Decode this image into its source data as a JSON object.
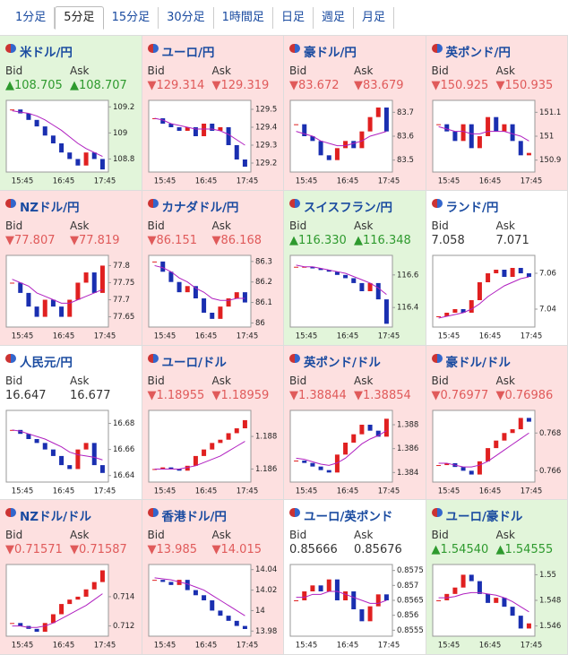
{
  "tabs": [
    {
      "label": "1分足",
      "active": false
    },
    {
      "label": "5分足",
      "active": true
    },
    {
      "label": "15分足",
      "active": false
    },
    {
      "label": "30分足",
      "active": false
    },
    {
      "label": "1時間足",
      "active": false
    },
    {
      "label": "日足",
      "active": false
    },
    {
      "label": "週足",
      "active": false
    },
    {
      "label": "月足",
      "active": false
    }
  ],
  "labels": {
    "bid": "Bid",
    "ask": "Ask"
  },
  "xticks": [
    "15:45",
    "16:45",
    "17:45"
  ],
  "colors": {
    "up": "#2e9a2e",
    "down": "#e05a5a",
    "none": "#333",
    "cell_up": "#e2f5da",
    "cell_down": "#fde0e0",
    "cell_none": "#ffffff",
    "candle_up": "#e02020",
    "candle_down": "#1a2fb0",
    "ma": "#b020c0"
  },
  "pairs": [
    {
      "name": "米ドル/円",
      "trend": "up",
      "bid": "▲108.705",
      "ask": "▲108.707",
      "chart": {
        "type": "candlestick",
        "yticks": [
          108.8,
          109,
          109.2
        ],
        "ylim": [
          108.7,
          109.25
        ],
        "close": [
          109.18,
          109.15,
          109.1,
          109.05,
          108.98,
          108.92,
          108.85,
          108.8,
          108.75,
          108.85,
          108.8,
          108.72
        ],
        "ma": [
          109.17,
          109.16,
          109.15,
          109.13,
          109.1,
          109.06,
          109.02,
          108.97,
          108.92,
          108.88,
          108.85,
          108.82
        ]
      }
    },
    {
      "name": "ユーロ/円",
      "trend": "down",
      "bid": "▼129.314",
      "ask": "▼129.319",
      "chart": {
        "type": "candlestick",
        "yticks": [
          129.2,
          129.3,
          129.4,
          129.5
        ],
        "ylim": [
          129.15,
          129.55
        ],
        "close": [
          129.45,
          129.42,
          129.4,
          129.38,
          129.4,
          129.35,
          129.42,
          129.38,
          129.4,
          129.3,
          129.22,
          129.18
        ],
        "ma": [
          129.45,
          129.44,
          129.42,
          129.41,
          129.4,
          129.39,
          129.39,
          129.39,
          129.38,
          129.36,
          129.33,
          129.3
        ]
      }
    },
    {
      "name": "豪ドル/円",
      "trend": "down",
      "bid": "▼83.672",
      "ask": "▼83.679",
      "chart": {
        "type": "candlestick",
        "yticks": [
          83.5,
          83.6,
          83.7
        ],
        "ylim": [
          83.45,
          83.75
        ],
        "close": [
          83.65,
          83.6,
          83.58,
          83.52,
          83.5,
          83.55,
          83.58,
          83.55,
          83.62,
          83.68,
          83.72,
          83.62
        ],
        "ma": [
          83.62,
          83.61,
          83.6,
          83.58,
          83.57,
          83.56,
          83.56,
          83.57,
          83.58,
          83.6,
          83.61,
          83.62
        ]
      }
    },
    {
      "name": "英ポンド/円",
      "trend": "down",
      "bid": "▼150.925",
      "ask": "▼150.935",
      "chart": {
        "type": "candlestick",
        "yticks": [
          150.9,
          151,
          151.1
        ],
        "ylim": [
          150.85,
          151.15
        ],
        "close": [
          151.05,
          151.02,
          150.98,
          151.05,
          150.95,
          151.0,
          151.08,
          151.02,
          151.05,
          150.98,
          150.92,
          150.93
        ],
        "ma": [
          151.04,
          151.03,
          151.02,
          151.02,
          151.01,
          151.01,
          151.02,
          151.02,
          151.02,
          151.01,
          151.0,
          150.98
        ]
      }
    },
    {
      "name": "NZドル/円",
      "trend": "down",
      "bid": "▼77.807",
      "ask": "▼77.819",
      "chart": {
        "type": "candlestick",
        "yticks": [
          77.65,
          77.7,
          77.75,
          77.8
        ],
        "ylim": [
          77.62,
          77.83
        ],
        "close": [
          77.75,
          77.72,
          77.68,
          77.65,
          77.7,
          77.68,
          77.65,
          77.7,
          77.75,
          77.78,
          77.72,
          77.8
        ],
        "ma": [
          77.76,
          77.75,
          77.74,
          77.72,
          77.71,
          77.7,
          77.69,
          77.69,
          77.7,
          77.71,
          77.72,
          77.73
        ]
      }
    },
    {
      "name": "カナダドル/円",
      "trend": "down",
      "bid": "▼86.151",
      "ask": "▼86.168",
      "chart": {
        "type": "candlestick",
        "yticks": [
          86,
          86.1,
          86.2,
          86.3
        ],
        "ylim": [
          85.98,
          86.33
        ],
        "close": [
          86.3,
          86.25,
          86.2,
          86.15,
          86.18,
          86.12,
          86.05,
          86.02,
          86.08,
          86.12,
          86.15,
          86.1
        ],
        "ma": [
          86.28,
          86.27,
          86.25,
          86.22,
          86.2,
          86.17,
          86.15,
          86.12,
          86.11,
          86.11,
          86.12,
          86.12
        ]
      }
    },
    {
      "name": "スイスフラン/円",
      "trend": "up",
      "bid": "▲116.330",
      "ask": "▲116.348",
      "chart": {
        "type": "candlestick",
        "yticks": [
          116.4,
          116.6
        ],
        "ylim": [
          116.28,
          116.72
        ],
        "close": [
          116.65,
          116.65,
          116.64,
          116.63,
          116.62,
          116.6,
          116.58,
          116.55,
          116.5,
          116.55,
          116.45,
          116.3
        ],
        "ma": [
          116.66,
          116.65,
          116.65,
          116.64,
          116.63,
          116.62,
          116.61,
          116.59,
          116.57,
          116.55,
          116.52,
          116.48
        ]
      }
    },
    {
      "name": "ランド/円",
      "trend": "none",
      "bid": "7.058",
      "ask": "7.071",
      "chart": {
        "type": "candlestick",
        "yticks": [
          7.04,
          7.06
        ],
        "ylim": [
          7.03,
          7.07
        ],
        "close": [
          7.036,
          7.038,
          7.04,
          7.038,
          7.045,
          7.055,
          7.06,
          7.062,
          7.058,
          7.063,
          7.06,
          7.058
        ],
        "ma": [
          7.035,
          7.036,
          7.037,
          7.038,
          7.04,
          7.043,
          7.047,
          7.05,
          7.053,
          7.055,
          7.057,
          7.058
        ]
      }
    },
    {
      "name": "人民元/円",
      "trend": "none",
      "bid": "16.647",
      "ask": "16.677",
      "chart": {
        "type": "candlestick",
        "yticks": [
          16.64,
          16.66,
          16.68
        ],
        "ylim": [
          16.635,
          16.69
        ],
        "close": [
          16.675,
          16.672,
          16.668,
          16.665,
          16.66,
          16.655,
          16.648,
          16.645,
          16.66,
          16.665,
          16.648,
          16.642
        ],
        "ma": [
          16.675,
          16.674,
          16.672,
          16.67,
          16.668,
          16.665,
          16.662,
          16.658,
          16.656,
          16.655,
          16.654,
          16.652
        ]
      }
    },
    {
      "name": "ユーロ/ドル",
      "trend": "down",
      "bid": "▼1.18955",
      "ask": "▼1.18959",
      "chart": {
        "type": "candlestick",
        "yticks": [
          1.186,
          1.188
        ],
        "ylim": [
          1.1852,
          1.1896
        ],
        "close": [
          1.186,
          1.1861,
          1.186,
          1.1859,
          1.1862,
          1.1868,
          1.1872,
          1.1876,
          1.1878,
          1.1882,
          1.1885,
          1.189
        ],
        "ma": [
          1.186,
          1.186,
          1.186,
          1.186,
          1.1861,
          1.1862,
          1.1864,
          1.1866,
          1.1868,
          1.1871,
          1.1874,
          1.1877
        ]
      }
    },
    {
      "name": "英ポンド/ドル",
      "trend": "down",
      "bid": "▼1.38844",
      "ask": "▼1.38854",
      "chart": {
        "type": "candlestick",
        "yticks": [
          1.384,
          1.386,
          1.388
        ],
        "ylim": [
          1.3832,
          1.3892
        ],
        "close": [
          1.385,
          1.3848,
          1.3845,
          1.3842,
          1.384,
          1.3855,
          1.3865,
          1.3872,
          1.388,
          1.3875,
          1.387,
          1.3885
        ],
        "ma": [
          1.3852,
          1.3851,
          1.3849,
          1.3847,
          1.3846,
          1.3848,
          1.3852,
          1.3858,
          1.3864,
          1.3868,
          1.3871,
          1.3875
        ]
      }
    },
    {
      "name": "豪ドル/ドル",
      "trend": "down",
      "bid": "▼0.76977",
      "ask": "▼0.76986",
      "chart": {
        "type": "candlestick",
        "yticks": [
          0.766,
          0.768
        ],
        "ylim": [
          0.7654,
          0.7692
        ],
        "close": [
          0.7663,
          0.7664,
          0.7662,
          0.766,
          0.7658,
          0.7665,
          0.7672,
          0.7676,
          0.768,
          0.7682,
          0.7688,
          0.7686
        ],
        "ma": [
          0.7664,
          0.7664,
          0.7663,
          0.7662,
          0.7662,
          0.7663,
          0.7665,
          0.7668,
          0.7671,
          0.7674,
          0.7677,
          0.768
        ]
      }
    },
    {
      "name": "NZドル/ドル",
      "trend": "down",
      "bid": "▼0.71571",
      "ask": "▼0.71587",
      "chart": {
        "type": "candlestick",
        "yticks": [
          0.712,
          0.714
        ],
        "ylim": [
          0.7113,
          0.7162
        ],
        "close": [
          0.7122,
          0.712,
          0.7118,
          0.7116,
          0.7122,
          0.7128,
          0.7135,
          0.7138,
          0.714,
          0.7145,
          0.715,
          0.7158
        ],
        "ma": [
          0.712,
          0.712,
          0.7119,
          0.7119,
          0.712,
          0.7122,
          0.7125,
          0.7128,
          0.7131,
          0.7134,
          0.7138,
          0.7142
        ]
      }
    },
    {
      "name": "香港ドル/円",
      "trend": "down",
      "bid": "▼13.985",
      "ask": "▼14.015",
      "chart": {
        "type": "candlestick",
        "yticks": [
          13.98,
          14,
          14.02,
          14.04
        ],
        "ylim": [
          13.975,
          14.045
        ],
        "close": [
          14.03,
          14.028,
          14.025,
          14.03,
          14.02,
          14.015,
          14.01,
          14.0,
          13.995,
          13.99,
          13.985,
          13.982
        ],
        "ma": [
          14.032,
          14.031,
          14.03,
          14.028,
          14.026,
          14.023,
          14.02,
          14.015,
          14.01,
          14.005,
          14.0,
          13.995
        ]
      }
    },
    {
      "name": "ユーロ/英ポンド",
      "trend": "none",
      "bid": "0.85666",
      "ask": "0.85676",
      "chart": {
        "type": "candlestick",
        "yticks": [
          0.8555,
          0.856,
          0.8565,
          0.857,
          0.8575
        ],
        "ylim": [
          0.8553,
          0.8577
        ],
        "close": [
          0.8565,
          0.8568,
          0.857,
          0.8568,
          0.8572,
          0.8565,
          0.8568,
          0.8562,
          0.8558,
          0.8563,
          0.8567,
          0.8565
        ],
        "ma": [
          0.8566,
          0.8566,
          0.8567,
          0.8567,
          0.8568,
          0.8568,
          0.8567,
          0.8566,
          0.8565,
          0.8564,
          0.8564,
          0.8565
        ]
      }
    },
    {
      "name": "ユーロ/豪ドル",
      "trend": "up",
      "bid": "▲1.54540",
      "ask": "▲1.54555",
      "chart": {
        "type": "candlestick",
        "yticks": [
          1.546,
          1.548,
          1.55
        ],
        "ylim": [
          1.5452,
          1.5508
        ],
        "close": [
          1.548,
          1.5485,
          1.549,
          1.55,
          1.5495,
          1.5485,
          1.5478,
          1.5482,
          1.5475,
          1.5468,
          1.5458,
          1.5462
        ],
        "ma": [
          1.5482,
          1.5482,
          1.5483,
          1.5485,
          1.5486,
          1.5486,
          1.5485,
          1.5484,
          1.5482,
          1.5479,
          1.5475,
          1.5471
        ]
      }
    }
  ]
}
